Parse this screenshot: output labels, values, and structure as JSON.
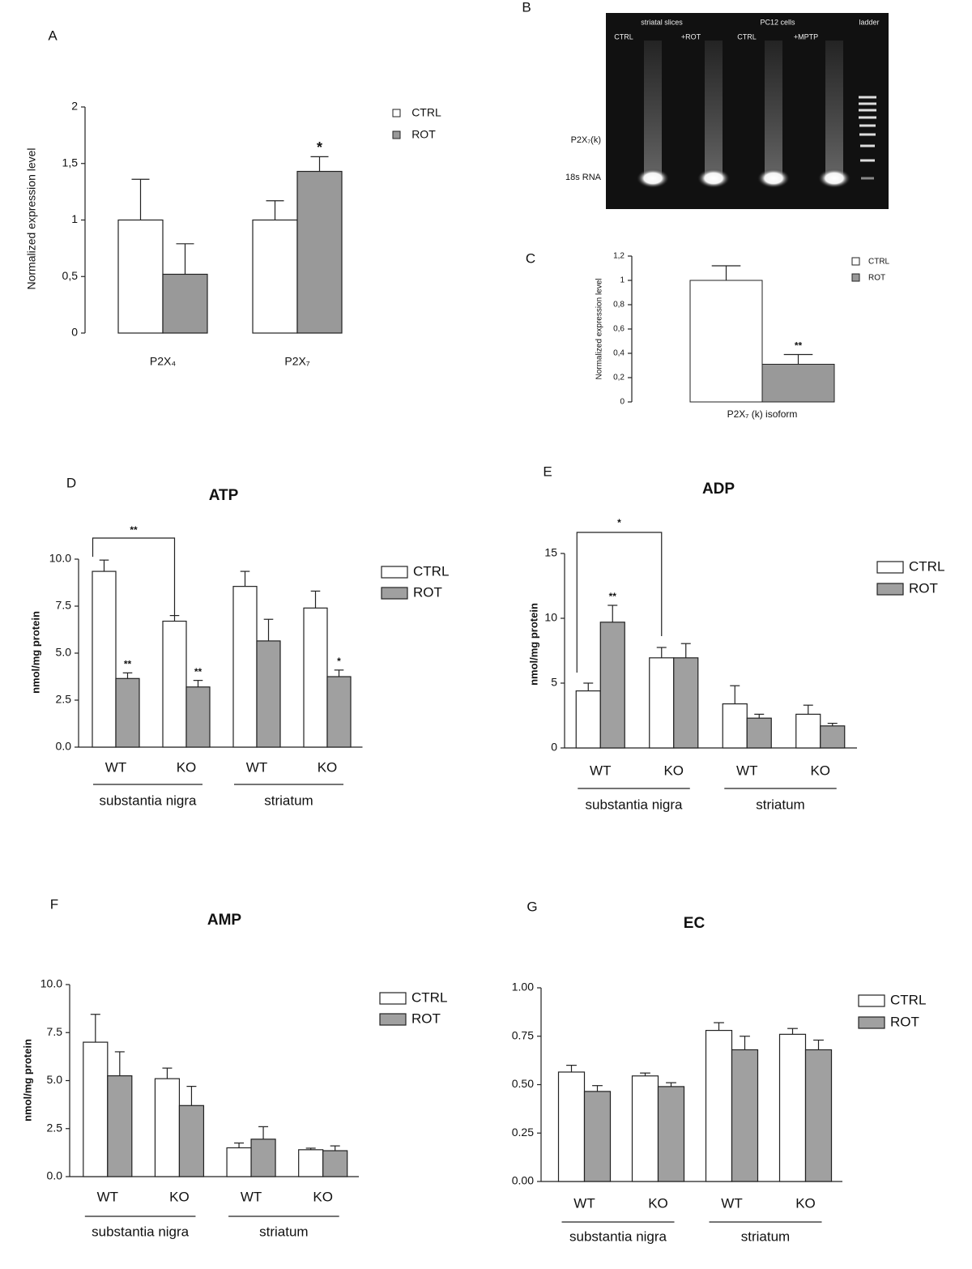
{
  "gel": {
    "panel": "B",
    "headers": [
      "striatal slices",
      "PC12 cells",
      "ladder"
    ],
    "lanes": [
      "CTRL",
      "+ROT",
      "CTRL",
      "+MPTP"
    ],
    "bands": [
      "P2X₇(k)",
      "18s RNA"
    ]
  },
  "chart_data": [
    {
      "type": "bar",
      "panel": "A",
      "ylabel": "Normalized expression level",
      "categories": [
        "P2X₄",
        "P2X₇"
      ],
      "series": [
        {
          "name": "CTRL",
          "color": "#ffffff",
          "values": [
            1,
            1
          ],
          "errors": [
            0.36,
            0.17
          ],
          "stars": [
            null,
            null
          ]
        },
        {
          "name": "ROT",
          "color": "#999999",
          "values": [
            0.52,
            1.43
          ],
          "errors": [
            0.27,
            0.13
          ],
          "stars": [
            null,
            "*"
          ]
        }
      ],
      "ylim": [
        0,
        2
      ],
      "yticks": [
        0,
        {
          "value": 0.5,
          "label": "0,5"
        },
        1,
        {
          "value": 1.5,
          "label": "1,5"
        },
        2
      ]
    },
    {
      "type": "bar",
      "panel": "C",
      "ylabel": "Normalized expression level",
      "categories": [
        "P2X₇ (k) isoform"
      ],
      "series": [
        {
          "name": "CTRL",
          "color": "#ffffff",
          "values": [
            1
          ],
          "errors": [
            0.12
          ],
          "stars": [
            null
          ]
        },
        {
          "name": "ROT",
          "color": "#999999",
          "values": [
            0.31
          ],
          "errors": [
            0.08
          ],
          "stars": [
            "**"
          ]
        }
      ],
      "ylim": [
        0,
        1.2
      ],
      "yticks": [
        0,
        {
          "value": 0.2,
          "label": "0,2"
        },
        {
          "value": 0.4,
          "label": "0,4"
        },
        {
          "value": 0.6,
          "label": "0,6"
        },
        {
          "value": 0.8,
          "label": "0,8"
        },
        1,
        {
          "value": 1.2,
          "label": "1,2"
        }
      ]
    },
    {
      "type": "bar",
      "panel": "D",
      "title": "ATP",
      "ylabel": "nmol/mg protein",
      "categories": [
        "WT",
        "KO",
        "WT",
        "KO"
      ],
      "groups": [
        "substantia nigra",
        "striatum"
      ],
      "series": [
        {
          "name": "CTRL",
          "color": "#ffffff",
          "values": [
            9.35,
            6.7,
            8.55,
            7.4
          ],
          "errors": [
            0.6,
            0.3,
            0.8,
            0.9
          ],
          "stars": [
            null,
            null,
            null,
            null
          ]
        },
        {
          "name": "ROT",
          "color": "#a0a0a0",
          "values": [
            3.65,
            3.2,
            5.65,
            3.75
          ],
          "errors": [
            0.3,
            0.35,
            1.15,
            0.35
          ],
          "stars": [
            "**",
            "**",
            null,
            "*"
          ]
        }
      ],
      "bracket_label": "**",
      "ylim": [
        0,
        10
      ],
      "yticks": [
        {
          "value": 0,
          "label": "0.0"
        },
        2.5,
        {
          "value": 5,
          "label": "5.0"
        },
        7.5,
        {
          "value": 10,
          "label": "10.0"
        }
      ]
    },
    {
      "type": "bar",
      "panel": "E",
      "title": "ADP",
      "ylabel": "nmol/mg protein",
      "categories": [
        "WT",
        "KO",
        "WT",
        "KO"
      ],
      "groups": [
        "substantia nigra",
        "striatum"
      ],
      "series": [
        {
          "name": "CTRL",
          "color": "#ffffff",
          "values": [
            4.4,
            6.95,
            3.4,
            2.6
          ],
          "errors": [
            0.6,
            0.8,
            1.4,
            0.7
          ],
          "stars": [
            null,
            null,
            null,
            null
          ]
        },
        {
          "name": "ROT",
          "color": "#a0a0a0",
          "values": [
            9.7,
            6.95,
            2.3,
            1.7
          ],
          "errors": [
            1.3,
            1.1,
            0.3,
            0.2
          ],
          "stars": [
            "**",
            null,
            null,
            null
          ]
        }
      ],
      "bracket_label": "*",
      "ylim": [
        0,
        15
      ],
      "yticks": [
        0,
        5,
        10,
        15
      ]
    },
    {
      "type": "bar",
      "panel": "F",
      "title": "AMP",
      "ylabel": "nmol/mg protein",
      "categories": [
        "WT",
        "KO",
        "WT",
        "KO"
      ],
      "groups": [
        "substantia nigra",
        "striatum"
      ],
      "series": [
        {
          "name": "CTRL",
          "color": "#ffffff",
          "values": [
            7.0,
            5.1,
            1.5,
            1.4
          ],
          "errors": [
            1.45,
            0.55,
            0.25,
            0.08
          ],
          "stars": [
            null,
            null,
            null,
            null
          ]
        },
        {
          "name": "ROT",
          "color": "#a0a0a0",
          "values": [
            5.25,
            3.7,
            1.95,
            1.35
          ],
          "errors": [
            1.25,
            1.0,
            0.65,
            0.25
          ],
          "stars": [
            null,
            null,
            null,
            null
          ]
        }
      ],
      "ylim": [
        0,
        10
      ],
      "yticks": [
        {
          "value": 0,
          "label": "0.0"
        },
        2.5,
        {
          "value": 5,
          "label": "5.0"
        },
        7.5,
        {
          "value": 10,
          "label": "10.0"
        }
      ]
    },
    {
      "type": "bar",
      "panel": "G",
      "title": "EC",
      "categories": [
        "WT",
        "KO",
        "WT",
        "KO"
      ],
      "groups": [
        "substantia nigra",
        "striatum"
      ],
      "series": [
        {
          "name": "CTRL",
          "color": "#ffffff",
          "values": [
            0.565,
            0.545,
            0.78,
            0.76
          ],
          "errors": [
            0.035,
            0.015,
            0.04,
            0.03
          ],
          "stars": [
            null,
            null,
            null,
            null
          ]
        },
        {
          "name": "ROT",
          "color": "#a0a0a0",
          "values": [
            0.465,
            0.49,
            0.68,
            0.68
          ],
          "errors": [
            0.03,
            0.02,
            0.07,
            0.05
          ],
          "stars": [
            null,
            null,
            null,
            null
          ]
        }
      ],
      "ylim": [
        0,
        1
      ],
      "yticks": [
        {
          "value": 0,
          "label": "0.00"
        },
        0.25,
        {
          "value": 0.5,
          "label": "0.50"
        },
        0.75,
        {
          "value": 1,
          "label": "1.00"
        }
      ]
    }
  ]
}
